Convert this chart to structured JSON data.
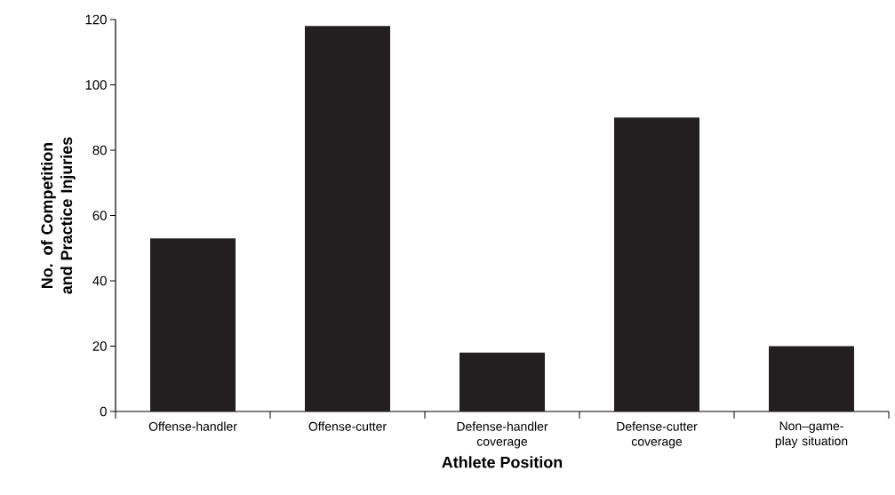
{
  "chart_data": {
    "type": "bar",
    "xlabel": "Athlete Position",
    "ylabel": "No. of Competition and Practice Injuries",
    "categories": [
      "Offense-handler",
      "Offense-cutter",
      "Defense-handler coverage",
      "Defense-cutter coverage",
      "Non–game-play situation"
    ],
    "values": [
      53,
      118,
      18,
      90,
      20
    ],
    "color": "#231f20",
    "ylim": [
      0,
      120
    ],
    "yticks": [
      0,
      20,
      40,
      60,
      80,
      100,
      120
    ],
    "grid": false
  }
}
